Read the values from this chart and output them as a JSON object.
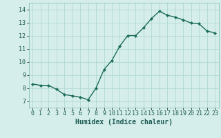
{
  "x": [
    0,
    1,
    2,
    3,
    4,
    5,
    6,
    7,
    8,
    9,
    10,
    11,
    12,
    13,
    14,
    15,
    16,
    17,
    18,
    19,
    20,
    21,
    22,
    23
  ],
  "y": [
    8.3,
    8.2,
    8.2,
    7.9,
    7.5,
    7.4,
    7.3,
    7.1,
    8.0,
    9.4,
    10.1,
    11.2,
    12.0,
    12.0,
    12.6,
    13.3,
    13.85,
    13.55,
    13.4,
    13.2,
    12.95,
    12.9,
    12.35,
    12.2
  ],
  "line_color": "#1a6b5a",
  "marker": "D",
  "marker_size": 2.2,
  "linewidth": 1.0,
  "bg_color": "#d6eeeb",
  "grid_color": "#b0d8d4",
  "xlabel": "Humidex (Indice chaleur)",
  "xlabel_fontsize": 7,
  "tick_fontsize": 6,
  "ylim": [
    6.5,
    14.5
  ],
  "xlim": [
    -0.5,
    23.5
  ],
  "yticks": [
    7,
    8,
    9,
    10,
    11,
    12,
    13,
    14
  ],
  "xticks": [
    0,
    1,
    2,
    3,
    4,
    5,
    6,
    7,
    8,
    9,
    10,
    11,
    12,
    13,
    14,
    15,
    16,
    17,
    18,
    19,
    20,
    21,
    22,
    23
  ]
}
